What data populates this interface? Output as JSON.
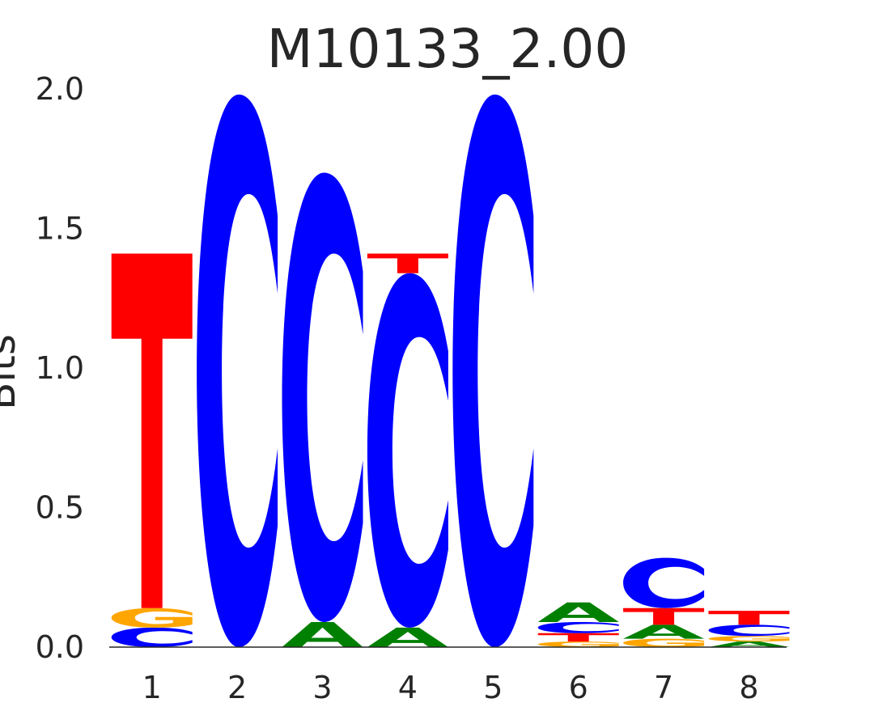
{
  "chart_data": {
    "type": "sequence-logo",
    "title": "M10133_2.00",
    "ylabel": "Bits",
    "ylim": [
      0,
      2.0
    ],
    "yticks": [
      "0.0",
      "0.5",
      "1.0",
      "1.5",
      "2.0"
    ],
    "yticks_values": [
      0,
      0.5,
      1.0,
      1.5,
      2.0
    ],
    "positions": [
      "1",
      "2",
      "3",
      "4",
      "5",
      "6",
      "7",
      "8"
    ],
    "colors": {
      "A": "#008000",
      "C": "#0000ff",
      "G": "#ffa500",
      "T": "#ff0000"
    },
    "stacks": [
      [
        {
          "base": "C",
          "bits": 0.07
        },
        {
          "base": "G",
          "bits": 0.07
        },
        {
          "base": "T",
          "bits": 1.27
        }
      ],
      [
        {
          "base": "C",
          "bits": 1.98
        }
      ],
      [
        {
          "base": "A",
          "bits": 0.09
        },
        {
          "base": "C",
          "bits": 1.61
        }
      ],
      [
        {
          "base": "A",
          "bits": 0.07
        },
        {
          "base": "C",
          "bits": 1.27
        },
        {
          "base": "T",
          "bits": 0.07
        }
      ],
      [
        {
          "base": "C",
          "bits": 1.98
        }
      ],
      [
        {
          "base": "G",
          "bits": 0.02
        },
        {
          "base": "T",
          "bits": 0.03
        },
        {
          "base": "C",
          "bits": 0.04
        },
        {
          "base": "A",
          "bits": 0.07
        }
      ],
      [
        {
          "base": "G",
          "bits": 0.03
        },
        {
          "base": "A",
          "bits": 0.05
        },
        {
          "base": "T",
          "bits": 0.06
        },
        {
          "base": "C",
          "bits": 0.18
        }
      ],
      [
        {
          "base": "A",
          "bits": 0.02
        },
        {
          "base": "G",
          "bits": 0.02
        },
        {
          "base": "C",
          "bits": 0.04
        },
        {
          "base": "T",
          "bits": 0.05
        }
      ]
    ]
  }
}
